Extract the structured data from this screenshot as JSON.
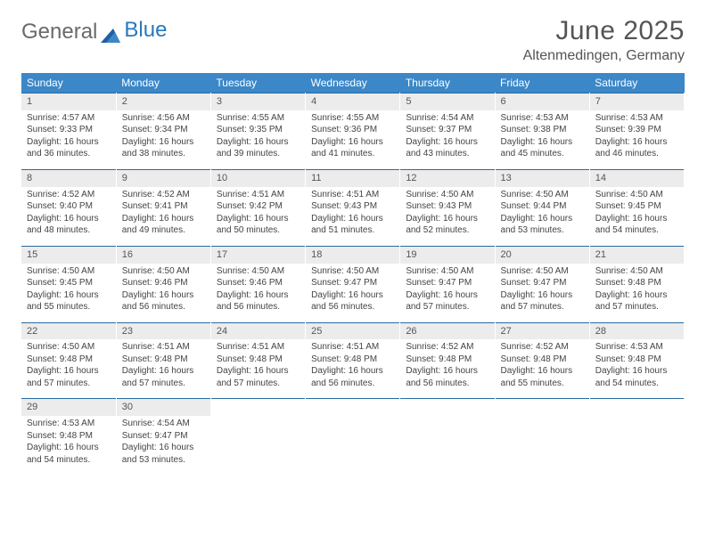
{
  "logo": {
    "part1": "General",
    "part2": "Blue"
  },
  "title": "June 2025",
  "subtitle": "Altenmedingen, Germany",
  "colors": {
    "header_bg": "#3c87c7",
    "header_text": "#ffffff",
    "daynum_bg": "#ececec",
    "rule": "#2a6aa0",
    "title_color": "#555555",
    "logo_gray": "#6a6a6a",
    "logo_blue": "#2a78bd"
  },
  "weekdays": [
    "Sunday",
    "Monday",
    "Tuesday",
    "Wednesday",
    "Thursday",
    "Friday",
    "Saturday"
  ],
  "weeks": [
    [
      {
        "n": "1",
        "sr": "Sunrise: 4:57 AM",
        "ss": "Sunset: 9:33 PM",
        "d1": "Daylight: 16 hours",
        "d2": "and 36 minutes."
      },
      {
        "n": "2",
        "sr": "Sunrise: 4:56 AM",
        "ss": "Sunset: 9:34 PM",
        "d1": "Daylight: 16 hours",
        "d2": "and 38 minutes."
      },
      {
        "n": "3",
        "sr": "Sunrise: 4:55 AM",
        "ss": "Sunset: 9:35 PM",
        "d1": "Daylight: 16 hours",
        "d2": "and 39 minutes."
      },
      {
        "n": "4",
        "sr": "Sunrise: 4:55 AM",
        "ss": "Sunset: 9:36 PM",
        "d1": "Daylight: 16 hours",
        "d2": "and 41 minutes."
      },
      {
        "n": "5",
        "sr": "Sunrise: 4:54 AM",
        "ss": "Sunset: 9:37 PM",
        "d1": "Daylight: 16 hours",
        "d2": "and 43 minutes."
      },
      {
        "n": "6",
        "sr": "Sunrise: 4:53 AM",
        "ss": "Sunset: 9:38 PM",
        "d1": "Daylight: 16 hours",
        "d2": "and 45 minutes."
      },
      {
        "n": "7",
        "sr": "Sunrise: 4:53 AM",
        "ss": "Sunset: 9:39 PM",
        "d1": "Daylight: 16 hours",
        "d2": "and 46 minutes."
      }
    ],
    [
      {
        "n": "8",
        "sr": "Sunrise: 4:52 AM",
        "ss": "Sunset: 9:40 PM",
        "d1": "Daylight: 16 hours",
        "d2": "and 48 minutes."
      },
      {
        "n": "9",
        "sr": "Sunrise: 4:52 AM",
        "ss": "Sunset: 9:41 PM",
        "d1": "Daylight: 16 hours",
        "d2": "and 49 minutes."
      },
      {
        "n": "10",
        "sr": "Sunrise: 4:51 AM",
        "ss": "Sunset: 9:42 PM",
        "d1": "Daylight: 16 hours",
        "d2": "and 50 minutes."
      },
      {
        "n": "11",
        "sr": "Sunrise: 4:51 AM",
        "ss": "Sunset: 9:43 PM",
        "d1": "Daylight: 16 hours",
        "d2": "and 51 minutes."
      },
      {
        "n": "12",
        "sr": "Sunrise: 4:50 AM",
        "ss": "Sunset: 9:43 PM",
        "d1": "Daylight: 16 hours",
        "d2": "and 52 minutes."
      },
      {
        "n": "13",
        "sr": "Sunrise: 4:50 AM",
        "ss": "Sunset: 9:44 PM",
        "d1": "Daylight: 16 hours",
        "d2": "and 53 minutes."
      },
      {
        "n": "14",
        "sr": "Sunrise: 4:50 AM",
        "ss": "Sunset: 9:45 PM",
        "d1": "Daylight: 16 hours",
        "d2": "and 54 minutes."
      }
    ],
    [
      {
        "n": "15",
        "sr": "Sunrise: 4:50 AM",
        "ss": "Sunset: 9:45 PM",
        "d1": "Daylight: 16 hours",
        "d2": "and 55 minutes."
      },
      {
        "n": "16",
        "sr": "Sunrise: 4:50 AM",
        "ss": "Sunset: 9:46 PM",
        "d1": "Daylight: 16 hours",
        "d2": "and 56 minutes."
      },
      {
        "n": "17",
        "sr": "Sunrise: 4:50 AM",
        "ss": "Sunset: 9:46 PM",
        "d1": "Daylight: 16 hours",
        "d2": "and 56 minutes."
      },
      {
        "n": "18",
        "sr": "Sunrise: 4:50 AM",
        "ss": "Sunset: 9:47 PM",
        "d1": "Daylight: 16 hours",
        "d2": "and 56 minutes."
      },
      {
        "n": "19",
        "sr": "Sunrise: 4:50 AM",
        "ss": "Sunset: 9:47 PM",
        "d1": "Daylight: 16 hours",
        "d2": "and 57 minutes."
      },
      {
        "n": "20",
        "sr": "Sunrise: 4:50 AM",
        "ss": "Sunset: 9:47 PM",
        "d1": "Daylight: 16 hours",
        "d2": "and 57 minutes."
      },
      {
        "n": "21",
        "sr": "Sunrise: 4:50 AM",
        "ss": "Sunset: 9:48 PM",
        "d1": "Daylight: 16 hours",
        "d2": "and 57 minutes."
      }
    ],
    [
      {
        "n": "22",
        "sr": "Sunrise: 4:50 AM",
        "ss": "Sunset: 9:48 PM",
        "d1": "Daylight: 16 hours",
        "d2": "and 57 minutes."
      },
      {
        "n": "23",
        "sr": "Sunrise: 4:51 AM",
        "ss": "Sunset: 9:48 PM",
        "d1": "Daylight: 16 hours",
        "d2": "and 57 minutes."
      },
      {
        "n": "24",
        "sr": "Sunrise: 4:51 AM",
        "ss": "Sunset: 9:48 PM",
        "d1": "Daylight: 16 hours",
        "d2": "and 57 minutes."
      },
      {
        "n": "25",
        "sr": "Sunrise: 4:51 AM",
        "ss": "Sunset: 9:48 PM",
        "d1": "Daylight: 16 hours",
        "d2": "and 56 minutes."
      },
      {
        "n": "26",
        "sr": "Sunrise: 4:52 AM",
        "ss": "Sunset: 9:48 PM",
        "d1": "Daylight: 16 hours",
        "d2": "and 56 minutes."
      },
      {
        "n": "27",
        "sr": "Sunrise: 4:52 AM",
        "ss": "Sunset: 9:48 PM",
        "d1": "Daylight: 16 hours",
        "d2": "and 55 minutes."
      },
      {
        "n": "28",
        "sr": "Sunrise: 4:53 AM",
        "ss": "Sunset: 9:48 PM",
        "d1": "Daylight: 16 hours",
        "d2": "and 54 minutes."
      }
    ],
    [
      {
        "n": "29",
        "sr": "Sunrise: 4:53 AM",
        "ss": "Sunset: 9:48 PM",
        "d1": "Daylight: 16 hours",
        "d2": "and 54 minutes."
      },
      {
        "n": "30",
        "sr": "Sunrise: 4:54 AM",
        "ss": "Sunset: 9:47 PM",
        "d1": "Daylight: 16 hours",
        "d2": "and 53 minutes."
      },
      null,
      null,
      null,
      null,
      null
    ]
  ]
}
